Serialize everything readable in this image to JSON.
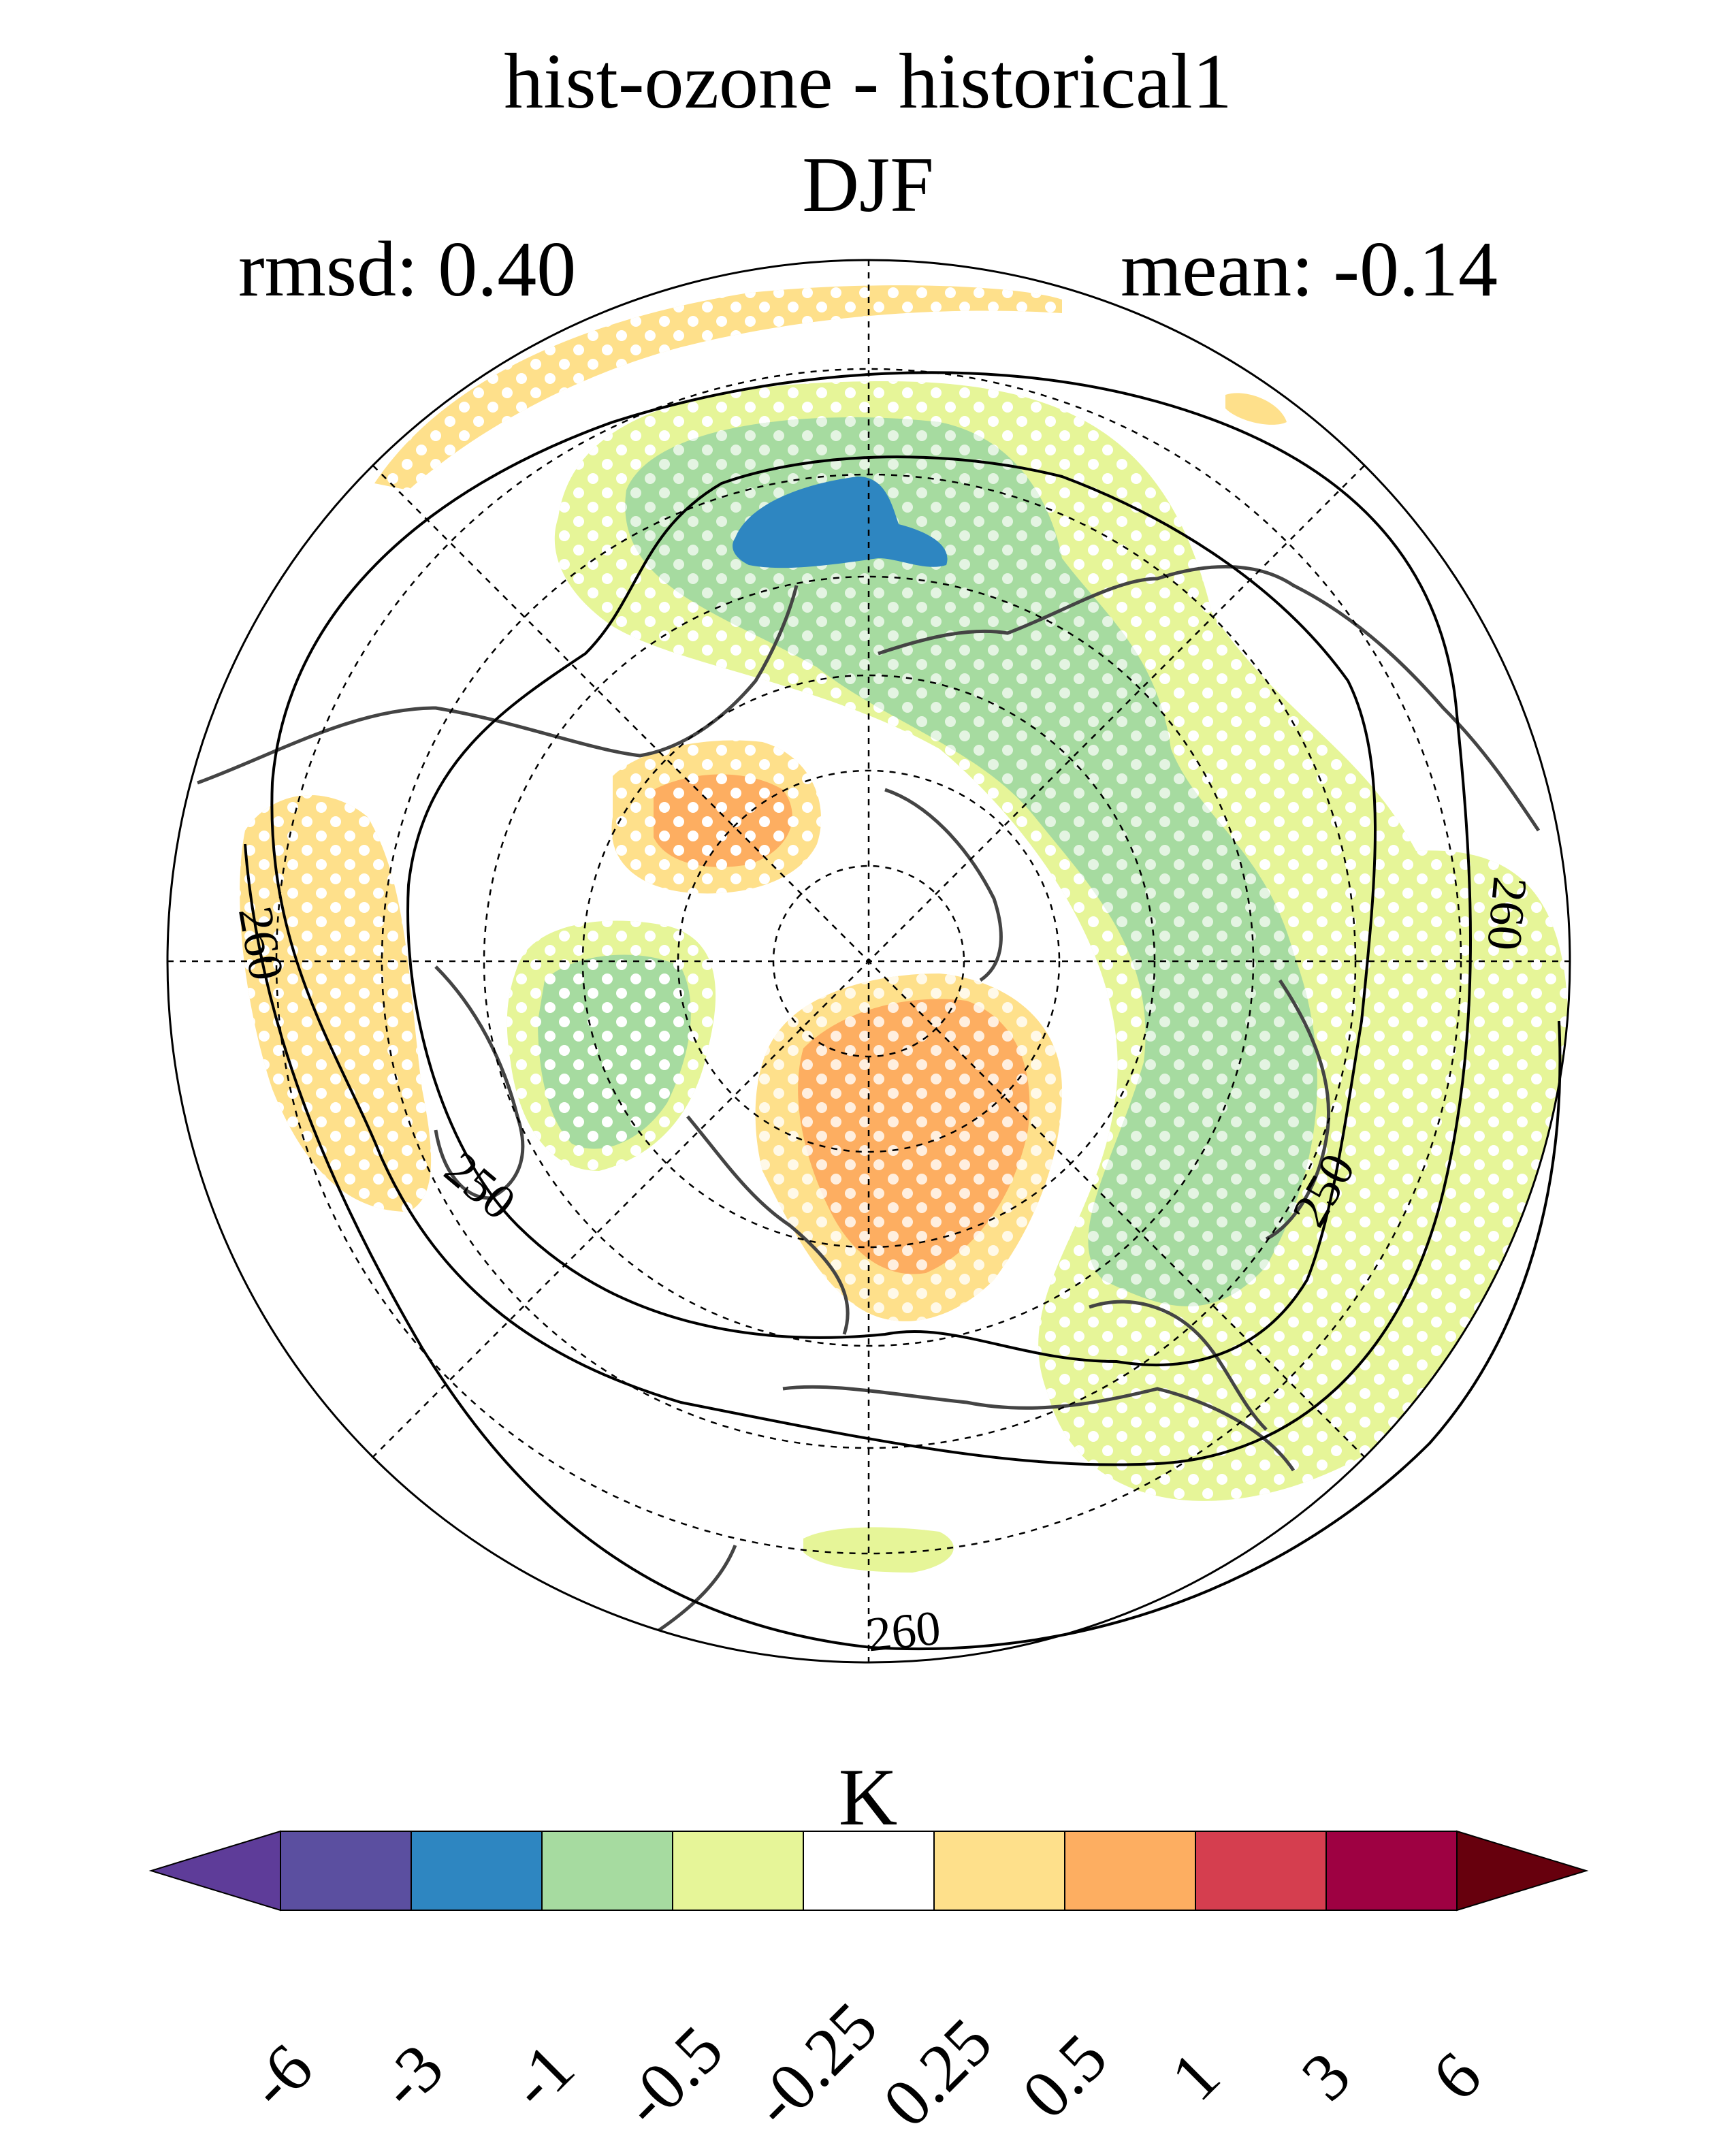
{
  "title": "hist-ozone - historical1",
  "season": "DJF",
  "stats": {
    "rmsd": "rmsd: 0.40",
    "mean": "mean: -0.14"
  },
  "colorbar": {
    "unit": "K",
    "ticks": [
      "-6",
      "-3",
      "-1",
      "-0.5",
      "-0.25",
      "0.25",
      "0.5",
      "1",
      "3",
      "6"
    ],
    "colors": [
      "#5e3c99",
      "#5b4fa0",
      "#2e86c1",
      "#a6dba0",
      "#e6f598",
      "#ffffff",
      "#fee08b",
      "#fdae61",
      "#d53e4f",
      "#9e0142",
      "#67000d"
    ]
  },
  "map": {
    "projection": "north-polar-stereographic",
    "contour_labels": [
      "260",
      "260",
      "250",
      "250",
      "260",
      "260"
    ]
  }
}
